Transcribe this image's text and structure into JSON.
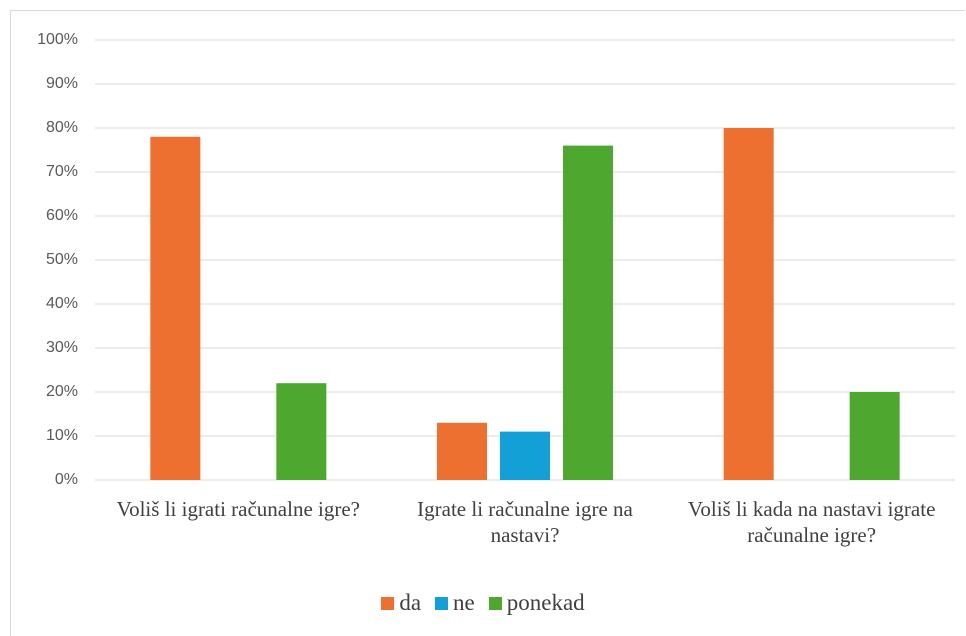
{
  "chart_data": {
    "type": "bar",
    "categories": [
      "Voliš li igrati računalne igre?",
      "Igrate li računalne igre na nastavi?",
      "Voliš li kada na nastavi igrate računalne igre?"
    ],
    "series": [
      {
        "name": "da",
        "color": "#ed7031",
        "values": [
          78,
          13,
          80
        ]
      },
      {
        "name": "ne",
        "color": "#12a0d7",
        "values": [
          0,
          11,
          0
        ]
      },
      {
        "name": "ponekad",
        "color": "#4ea72e",
        "values": [
          22,
          76,
          20
        ]
      }
    ],
    "ylim": [
      0,
      100
    ],
    "yticks": [
      {
        "value": 0,
        "label": "0%"
      },
      {
        "value": 10,
        "label": "10%"
      },
      {
        "value": 20,
        "label": "20%"
      },
      {
        "value": 30,
        "label": "30%"
      },
      {
        "value": 40,
        "label": "40%"
      },
      {
        "value": 50,
        "label": "50%"
      },
      {
        "value": 60,
        "label": "60%"
      },
      {
        "value": 70,
        "label": "70%"
      },
      {
        "value": 80,
        "label": "80%"
      },
      {
        "value": 90,
        "label": "90%"
      },
      {
        "value": 100,
        "label": "100%"
      }
    ],
    "grid": true,
    "legend": "bottom"
  }
}
